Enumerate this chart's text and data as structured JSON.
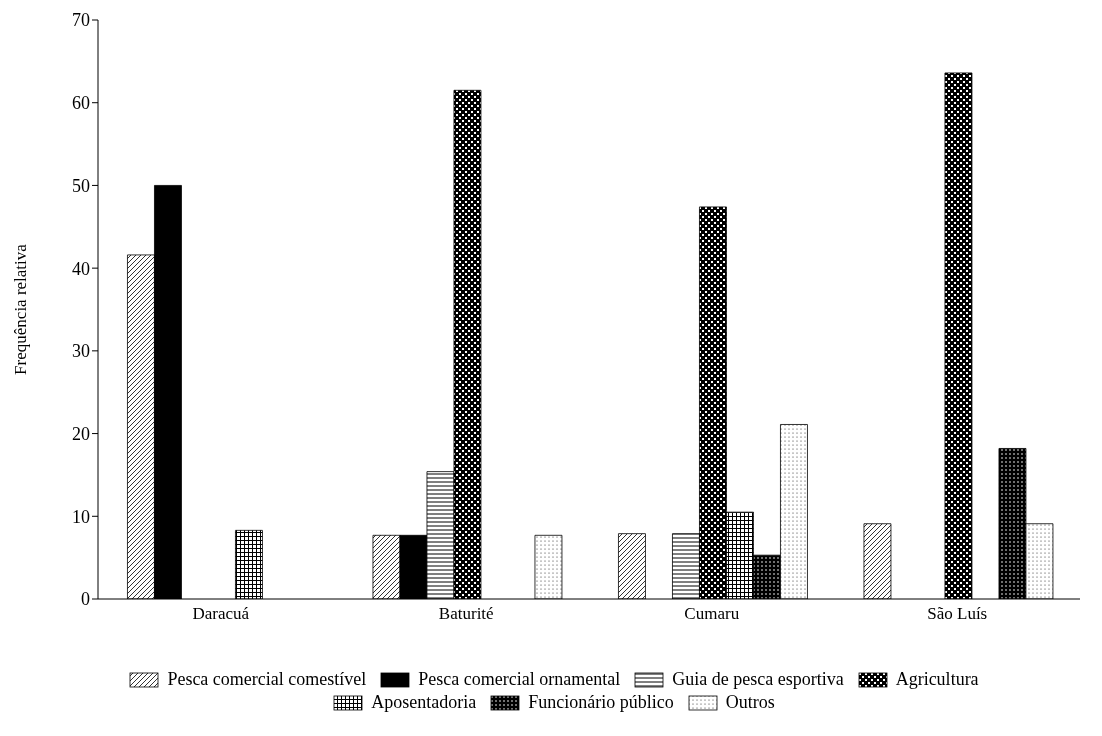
{
  "chart_data": {
    "type": "bar",
    "ylabel": "Frequência relativa",
    "categories": [
      "Daracuá",
      "Baturité",
      "Cumaru",
      "São Luís"
    ],
    "series": [
      {
        "name": "Pesca comercial comestível",
        "color": "#000000",
        "values": [
          41.6,
          7.7,
          7.9,
          9.1
        ]
      },
      {
        "name": "Pesca comercial ornamental",
        "color": "#000000",
        "values": [
          50,
          7.7,
          0,
          0
        ]
      },
      {
        "name": "Guia de pesca esportiva",
        "color": "#000000",
        "values": [
          0,
          15.4,
          7.9,
          0
        ]
      },
      {
        "name": "Agricultura",
        "color": "#000000",
        "values": [
          0,
          61.5,
          47.4,
          63.6
        ]
      },
      {
        "name": "Aposentadoria",
        "color": "#000000",
        "values": [
          8.3,
          0,
          10.5,
          0
        ]
      },
      {
        "name": "Funcionário público",
        "color": "#000000",
        "values": [
          0,
          0,
          5.3,
          18.2
        ]
      },
      {
        "name": "Outros",
        "color": "#000000",
        "values": [
          0,
          7.7,
          21.1,
          9.1
        ]
      }
    ],
    "ylim": [
      0,
      70
    ],
    "yticks": [
      0,
      10,
      20,
      30,
      40,
      50,
      60,
      70
    ],
    "grid": false,
    "legend": "bottom"
  }
}
